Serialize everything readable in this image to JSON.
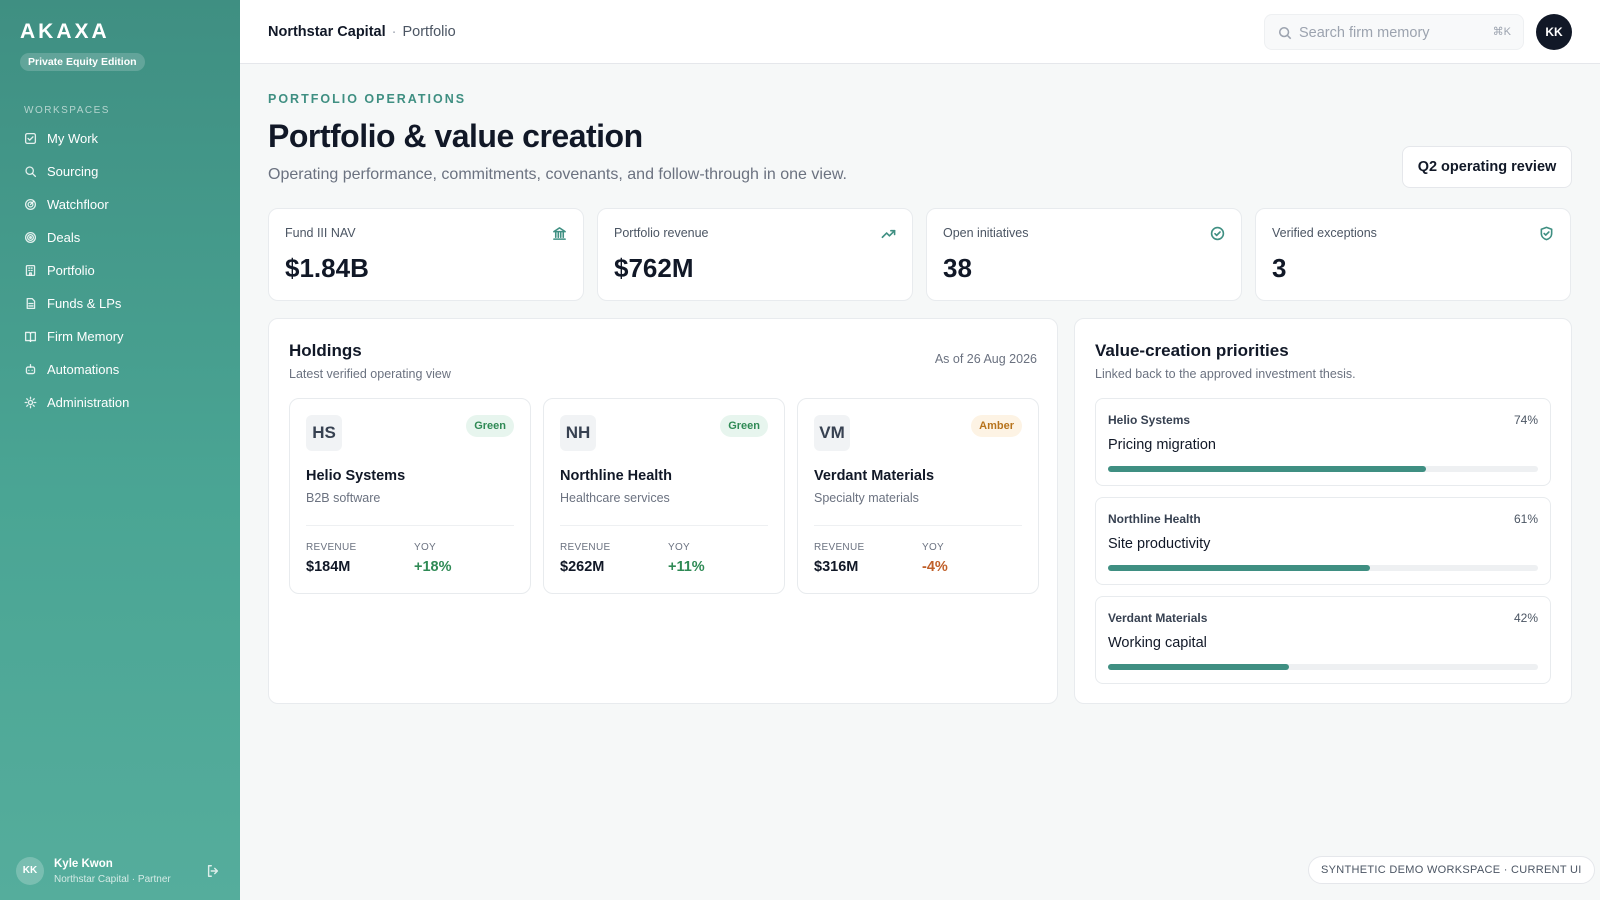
{
  "brand": {
    "name": "AKAXA",
    "edition": "Private Equity Edition"
  },
  "sidebar": {
    "heading": "WORKSPACES",
    "items": [
      {
        "label": "My Work",
        "icon": "check-square-icon"
      },
      {
        "label": "Sourcing",
        "icon": "search-icon"
      },
      {
        "label": "Watchfloor",
        "icon": "radar-icon"
      },
      {
        "label": "Deals",
        "icon": "target-icon"
      },
      {
        "label": "Portfolio",
        "icon": "building-icon"
      },
      {
        "label": "Funds & LPs",
        "icon": "document-icon"
      },
      {
        "label": "Firm Memory",
        "icon": "book-icon"
      },
      {
        "label": "Automations",
        "icon": "bot-icon"
      },
      {
        "label": "Administration",
        "icon": "gear-icon"
      }
    ],
    "user": {
      "initials": "KK",
      "name": "Kyle Kwon",
      "role": "Northstar Capital · Partner"
    }
  },
  "header": {
    "org": "Northstar Capital",
    "separator": "·",
    "page": "Portfolio",
    "search": {
      "placeholder": "Search firm memory",
      "shortcut": "⌘K"
    },
    "avatar": "KK"
  },
  "page": {
    "eyebrow": "PORTFOLIO OPERATIONS",
    "title": "Portfolio & value creation",
    "subtitle": "Operating performance, commitments, covenants, and follow-through in one view.",
    "action": "Q2 operating review"
  },
  "kpis": [
    {
      "label": "Fund III NAV",
      "value": "$1.84B",
      "icon": "bank-icon"
    },
    {
      "label": "Portfolio revenue",
      "value": "$762M",
      "icon": "trending-up-icon"
    },
    {
      "label": "Open initiatives",
      "value": "38",
      "icon": "check-circle-icon"
    },
    {
      "label": "Verified exceptions",
      "value": "3",
      "icon": "shield-check-icon"
    }
  ],
  "holdings": {
    "title": "Holdings",
    "subtitle": "Latest verified operating view",
    "as_of": "As of 26 Aug 2026",
    "items": [
      {
        "initials": "HS",
        "name": "Helio Systems",
        "sector": "B2B software",
        "status": "Green",
        "revenue_label": "REVENUE",
        "revenue": "$184M",
        "yoy_label": "YOY",
        "yoy": "+18%"
      },
      {
        "initials": "NH",
        "name": "Northline Health",
        "sector": "Healthcare services",
        "status": "Green",
        "revenue_label": "REVENUE",
        "revenue": "$262M",
        "yoy_label": "YOY",
        "yoy": "+11%"
      },
      {
        "initials": "VM",
        "name": "Verdant Materials",
        "sector": "Specialty materials",
        "status": "Amber",
        "revenue_label": "REVENUE",
        "revenue": "$316M",
        "yoy_label": "YOY",
        "yoy": "-4%"
      }
    ]
  },
  "priorities": {
    "title": "Value-creation priorities",
    "subtitle": "Linked back to the approved investment thesis.",
    "items": [
      {
        "company": "Helio Systems",
        "initiative": "Pricing migration",
        "percent_label": "74%",
        "progress": 0.74
      },
      {
        "company": "Northline Health",
        "initiative": "Site productivity",
        "percent_label": "61%",
        "progress": 0.61
      },
      {
        "company": "Verdant Materials",
        "initiative": "Working capital",
        "percent_label": "42%",
        "progress": 0.42
      }
    ]
  },
  "footer_tag": "SYNTHETIC DEMO WORKSPACE · CURRENT UI",
  "colors": {
    "accent": "#3f8f82",
    "sidebar": "#4aa594",
    "positive": "#2f8a55",
    "negative": "#c0602a",
    "amber": "#b7731c"
  }
}
